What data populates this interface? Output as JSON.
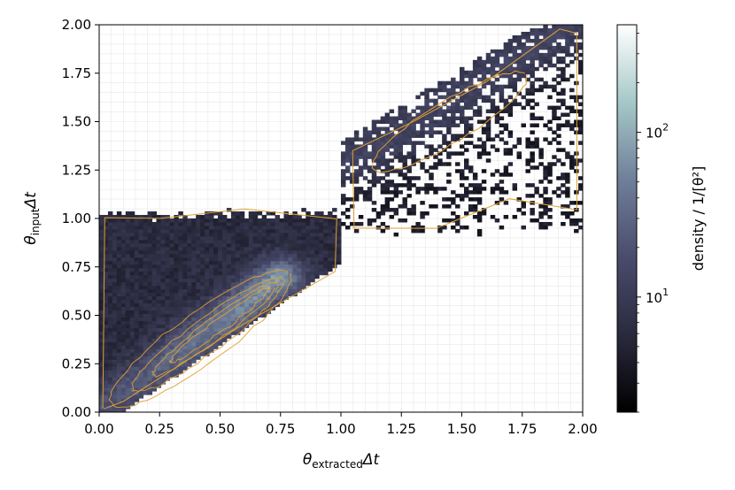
{
  "chart_data": {
    "type": "heatmap",
    "title": "",
    "xlabel": {
      "base": "θ",
      "sub": "extracted",
      "suffix": "Δt"
    },
    "ylabel": {
      "base": "θ",
      "sub": "input",
      "suffix": "Δt"
    },
    "xlim": [
      0.0,
      2.0
    ],
    "ylim": [
      0.0,
      2.0
    ],
    "xticks": [
      "0.00",
      "0.25",
      "0.50",
      "0.75",
      "1.00",
      "1.25",
      "1.50",
      "1.75",
      "2.00"
    ],
    "yticks": [
      "0.00",
      "0.25",
      "0.50",
      "0.75",
      "1.00",
      "1.25",
      "1.50",
      "1.75",
      "2.00"
    ],
    "grid": true,
    "colorbar": {
      "label": "density / 1/[θ²]",
      "scale": "log",
      "range": [
        2,
        450
      ],
      "ticks": [
        {
          "base": "10",
          "exp": "1",
          "value": 10
        },
        {
          "base": "10",
          "exp": "2",
          "value": 100
        }
      ],
      "colormap": [
        "#000000",
        "#2a2a3e",
        "#4a4c6c",
        "#6f7f99",
        "#a6c8c8",
        "#ffffff"
      ]
    },
    "contour_color": "#e0a030",
    "regions": [
      {
        "name": "lower band",
        "x_range": [
          0.0,
          1.0
        ],
        "y_range": [
          0.0,
          1.05
        ],
        "peak_line": {
          "from": [
            0.0,
            0.0
          ],
          "to": [
            0.75,
            0.7
          ]
        }
      },
      {
        "name": "upper band",
        "x_range": [
          1.0,
          2.0
        ],
        "y_range": [
          0.9,
          2.0
        ],
        "peak_line": {
          "from": [
            1.05,
            1.3
          ],
          "to": [
            1.95,
            2.0
          ]
        }
      }
    ]
  }
}
